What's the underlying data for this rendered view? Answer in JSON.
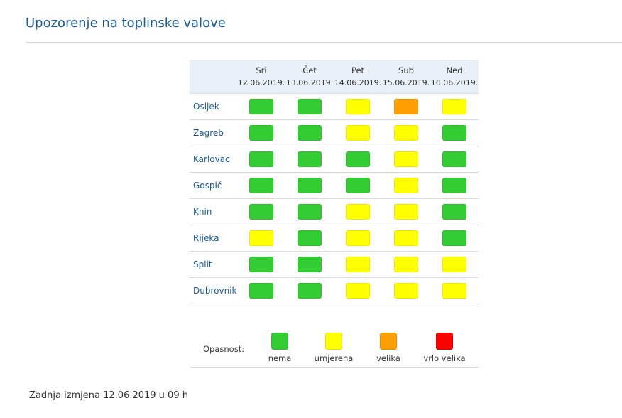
{
  "page": {
    "title": "Upozorenje na toplinske valove"
  },
  "colors": {
    "nema": "#33cc33",
    "umjerena": "#ffff00",
    "velika": "#ff9f00",
    "vrlo_velika": "#ff0000"
  },
  "days": [
    {
      "name": "Sri",
      "date": "12.06.2019."
    },
    {
      "name": "Čet",
      "date": "13.06.2019."
    },
    {
      "name": "Pet",
      "date": "14.06.2019."
    },
    {
      "name": "Sub",
      "date": "15.06.2019."
    },
    {
      "name": "Ned",
      "date": "16.06.2019."
    }
  ],
  "cities": [
    {
      "name": "Osijek",
      "levels": [
        "nema",
        "nema",
        "umjerena",
        "velika",
        "umjerena"
      ]
    },
    {
      "name": "Zagreb",
      "levels": [
        "nema",
        "nema",
        "umjerena",
        "umjerena",
        "nema"
      ]
    },
    {
      "name": "Karlovac",
      "levels": [
        "nema",
        "nema",
        "nema",
        "umjerena",
        "nema"
      ]
    },
    {
      "name": "Gospić",
      "levels": [
        "nema",
        "nema",
        "nema",
        "umjerena",
        "nema"
      ]
    },
    {
      "name": "Knin",
      "levels": [
        "nema",
        "nema",
        "umjerena",
        "umjerena",
        "nema"
      ]
    },
    {
      "name": "Rijeka",
      "levels": [
        "umjerena",
        "nema",
        "umjerena",
        "umjerena",
        "nema"
      ]
    },
    {
      "name": "Split",
      "levels": [
        "nema",
        "nema",
        "umjerena",
        "umjerena",
        "umjerena"
      ]
    },
    {
      "name": "Dubrovnik",
      "levels": [
        "nema",
        "nema",
        "umjerena",
        "umjerena",
        "umjerena"
      ]
    }
  ],
  "legend": {
    "label": "Opasnost:",
    "items": [
      {
        "key": "nema",
        "label": "nema"
      },
      {
        "key": "umjerena",
        "label": "umjerena"
      },
      {
        "key": "velika",
        "label": "velika"
      },
      {
        "key": "vrlo_velika",
        "label": "vrlo velika"
      }
    ]
  },
  "footer": {
    "last_modified": "Zadnja izmjena 12.06.2019 u 09 h"
  }
}
